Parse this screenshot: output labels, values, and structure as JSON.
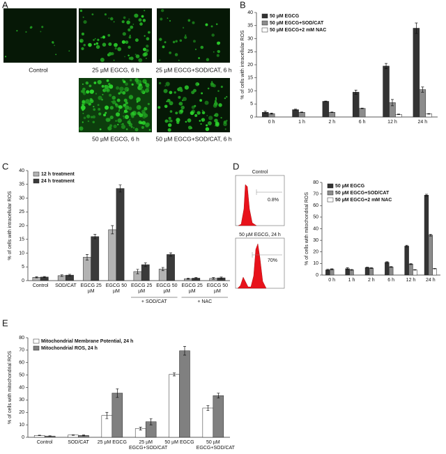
{
  "images_panel": {
    "panel_label": "A",
    "captions": [
      "Control",
      "25 µM EGCG, 6 h",
      "25 µM EGCG+SOD/CAT, 6 h",
      "50 µM EGCG, 6 h",
      "50 µM EGCG+SOD/CAT, 6 h"
    ]
  },
  "flow_panel": {
    "panel_label": "D",
    "plots": [
      {
        "title": "Control",
        "percent": "0.8%"
      },
      {
        "title": "50 µM EGCG, 24 h",
        "percent": "70%"
      }
    ]
  },
  "chart_data": [
    {
      "type": "bar",
      "panel_label": "B",
      "ylabel": "% of cells with intracellular ROS",
      "categories": [
        "0 h",
        "1 h",
        "2 h",
        "6 h",
        "12 h",
        "24 h"
      ],
      "series": [
        {
          "name": "50 µM EGCG",
          "color": "#333333",
          "values": [
            1.8,
            2.8,
            6,
            9.5,
            19.5,
            34
          ],
          "errors": [
            0.4,
            0.2,
            0.1,
            0.8,
            1,
            2
          ]
        },
        {
          "name": "50 µM EGCG+SOD/CAT",
          "color": "#8c8c8c",
          "values": [
            1.3,
            1.8,
            1.8,
            3.3,
            5.5,
            10.5
          ],
          "errors": [
            0.2,
            0.1,
            0.1,
            0.1,
            1.2,
            1
          ]
        },
        {
          "name": "50 µM EGCG+2 mM NAC",
          "color": "#ffffff",
          "values": [
            null,
            null,
            null,
            null,
            1,
            1.2
          ],
          "errors": [
            null,
            null,
            null,
            null,
            0.1,
            0.1
          ]
        }
      ],
      "ylim": [
        0,
        40
      ],
      "yticks": [
        0,
        5,
        10,
        15,
        20,
        25,
        30,
        35,
        40
      ],
      "legend": "upper left"
    },
    {
      "type": "bar",
      "panel_label": "C",
      "ylabel": "% of cells with intracellular ROS",
      "categories": [
        "Control",
        "SOD/CAT",
        "EGCG 25 µM",
        "EGCG 50 µM",
        "EGCG 25 µM",
        "EGCG 50 µM",
        "EGCG 25 µM",
        "EGCG 50 µM"
      ],
      "annotations": [
        "+ SOD/CAT",
        "+ NAC"
      ],
      "series": [
        {
          "name": "12 h treatment",
          "color": "#b3b3b3",
          "values": [
            1.2,
            1.8,
            8.5,
            18.5,
            3.3,
            4.2,
            0.7,
            0.8
          ],
          "errors": [
            0.2,
            0.3,
            1,
            1.5,
            0.8,
            0.6,
            0.2,
            0.3
          ]
        },
        {
          "name": "24 h treatment",
          "color": "#3a3a3a",
          "values": [
            1.3,
            2,
            16,
            33.5,
            5.8,
            9.5,
            0.9,
            1
          ],
          "errors": [
            0.2,
            0.3,
            0.8,
            1.3,
            0.7,
            0.6,
            0.2,
            0.3
          ]
        }
      ],
      "ylim": [
        0,
        40
      ],
      "yticks": [
        0,
        5,
        10,
        15,
        20,
        25,
        30,
        35,
        40
      ],
      "legend": "upper left"
    },
    {
      "type": "bar",
      "ylabel": "% of cells with mitochondrial ROS",
      "categories": [
        "0 h",
        "1 h",
        "2 h",
        "6 h",
        "12 h",
        "24 h"
      ],
      "series": [
        {
          "name": "50 µM EGCG",
          "color": "#333333",
          "values": [
            4.5,
            5.5,
            6.5,
            11,
            25,
            69
          ],
          "errors": [
            0.5,
            0.8,
            0.3,
            0.5,
            0.7,
            0.8
          ]
        },
        {
          "name": "50 µM EGCG+SOD/CAT",
          "color": "#8c8c8c",
          "values": [
            5,
            4.5,
            6,
            7,
            9.5,
            34.5
          ],
          "errors": [
            0.4,
            0.3,
            0.3,
            0.3,
            0.4,
            0.8
          ]
        },
        {
          "name": "50 µM EGCG+2 mM NAC",
          "color": "#ffffff",
          "values": [
            null,
            null,
            null,
            null,
            4.5,
            5.5
          ],
          "errors": [
            null,
            null,
            null,
            null,
            0.2,
            0.2
          ]
        }
      ],
      "ylim": [
        0,
        80
      ],
      "yticks": [
        0,
        10,
        20,
        30,
        40,
        50,
        60,
        70,
        80
      ],
      "legend": "upper left"
    },
    {
      "type": "bar",
      "panel_label": "E",
      "ylabel": "% of cells with mitochondrial ROS",
      "categories": [
        "Control",
        "SOD/CAT",
        "25 µM EGCG",
        "25 µM EGCG+SOD/CAT",
        "50 µM EGCG",
        "50 µM EGCG+SOD/CAT"
      ],
      "series": [
        {
          "name": "Mitochondrial Membrane Potential, 24 h",
          "color": "#ffffff",
          "values": [
            1.5,
            1.8,
            17.5,
            7,
            50.5,
            23.5
          ],
          "errors": [
            0.2,
            0.2,
            2.5,
            1.2,
            1.2,
            2
          ]
        },
        {
          "name": "Mitochondrial ROS, 24 h",
          "color": "#808080",
          "values": [
            1,
            1.5,
            35.5,
            12.5,
            69.5,
            33.5
          ],
          "errors": [
            0.2,
            0.3,
            3.5,
            2.5,
            3.5,
            2
          ]
        }
      ],
      "ylim": [
        0,
        80
      ],
      "yticks": [
        0,
        10,
        20,
        30,
        40,
        50,
        60,
        70,
        80
      ],
      "legend": "upper left"
    }
  ]
}
